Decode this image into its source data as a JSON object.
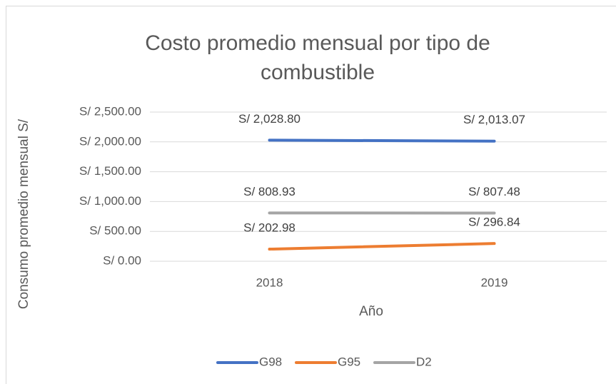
{
  "chart_data": {
    "type": "line",
    "title": "Costo promedio mensual por tipo de combustible",
    "x_label": "Año",
    "y_label": "Consumo promedio mensual S/",
    "categories": [
      "2018",
      "2019"
    ],
    "series": [
      {
        "name": "G98",
        "color": "#4472c4",
        "values": [
          2028.8,
          2013.07
        ],
        "value_labels": [
          "S/ 2,028.80",
          "S/ 2,013.07"
        ]
      },
      {
        "name": "G95",
        "color": "#ed7d31",
        "values": [
          202.98,
          296.84
        ],
        "value_labels": [
          "S/ 202.98",
          "S/ 296.84"
        ]
      },
      {
        "name": "D2",
        "color": "#a5a5a5",
        "values": [
          808.93,
          807.48
        ],
        "value_labels": [
          "S/ 808.93",
          "S/ 807.48"
        ]
      }
    ],
    "ylim": [
      0,
      2500
    ],
    "yticks": [
      {
        "value": 0,
        "label": "S/ 0.00"
      },
      {
        "value": 500,
        "label": "S/ 500.00"
      },
      {
        "value": 1000,
        "label": "S/ 1,000.00"
      },
      {
        "value": 1500,
        "label": "S/ 1,500.00"
      },
      {
        "value": 2000,
        "label": "S/ 2,000.00"
      },
      {
        "value": 2500,
        "label": "S/ 2,500.00"
      }
    ],
    "grid": true,
    "legend": "bottom"
  }
}
